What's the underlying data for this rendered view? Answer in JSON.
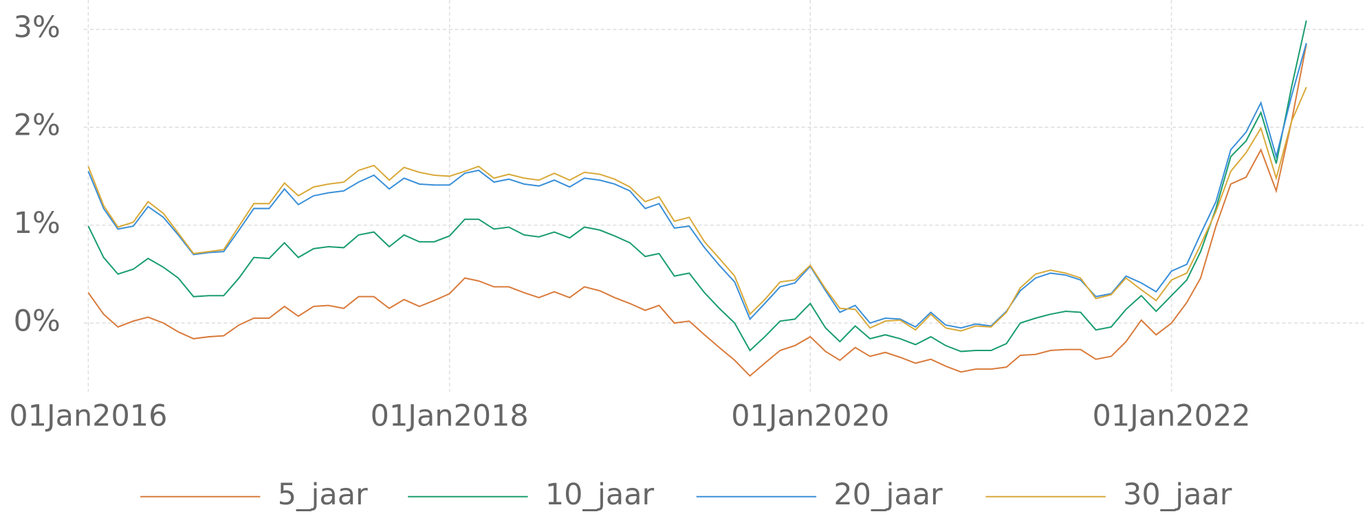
{
  "chart_data": {
    "type": "line",
    "x": [
      "2016-01-01",
      "2016-02-01",
      "2016-03-01",
      "2016-04-01",
      "2016-05-01",
      "2016-06-01",
      "2016-07-01",
      "2016-08-01",
      "2016-09-01",
      "2016-10-01",
      "2016-11-01",
      "2016-12-01",
      "2017-01-01",
      "2017-02-01",
      "2017-03-01",
      "2017-04-01",
      "2017-05-01",
      "2017-06-01",
      "2017-07-01",
      "2017-08-01",
      "2017-09-01",
      "2017-10-01",
      "2017-11-01",
      "2017-12-01",
      "2018-01-01",
      "2018-02-01",
      "2018-03-01",
      "2018-04-01",
      "2018-05-01",
      "2018-06-01",
      "2018-07-01",
      "2018-08-01",
      "2018-09-01",
      "2018-10-01",
      "2018-11-01",
      "2018-12-01",
      "2019-01-01",
      "2019-02-01",
      "2019-03-01",
      "2019-04-01",
      "2019-05-01",
      "2019-06-01",
      "2019-07-01",
      "2019-08-01",
      "2019-09-01",
      "2019-10-01",
      "2019-11-01",
      "2019-12-01",
      "2020-01-01",
      "2020-02-01",
      "2020-03-01",
      "2020-04-01",
      "2020-05-01",
      "2020-06-01",
      "2020-07-01",
      "2020-08-01",
      "2020-09-01",
      "2020-10-01",
      "2020-11-01",
      "2020-12-01",
      "2021-01-01",
      "2021-02-01",
      "2021-03-01",
      "2021-04-01",
      "2021-05-01",
      "2021-06-01",
      "2021-07-01",
      "2021-08-01",
      "2021-09-01",
      "2021-10-01",
      "2021-11-01",
      "2021-12-01",
      "2022-01-01",
      "2022-02-01",
      "2022-03-01",
      "2022-04-01",
      "2022-05-01",
      "2022-06-01",
      "2022-07-01",
      "2022-08-01",
      "2022-09-01",
      "2022-10-01"
    ],
    "series": [
      {
        "name": "5_jaar",
        "color": "#d97b3c",
        "values": [
          0.31,
          0.09,
          -0.04,
          0.02,
          0.06,
          0,
          -0.09,
          -0.16,
          -0.14,
          -0.13,
          -0.02,
          0.05,
          0.05,
          0.17,
          0.07,
          0.17,
          0.18,
          0.15,
          0.27,
          0.27,
          0.15,
          0.24,
          0.17,
          0.23,
          0.3,
          0.46,
          0.43,
          0.37,
          0.37,
          0.31,
          0.26,
          0.32,
          0.26,
          0.37,
          0.33,
          0.26,
          0.2,
          0.13,
          0.18,
          0,
          0.02,
          -0.12,
          -0.25,
          -0.38,
          -0.54,
          -0.41,
          -0.28,
          -0.23,
          -0.14,
          -0.29,
          -0.38,
          -0.25,
          -0.34,
          -0.3,
          -0.35,
          -0.41,
          -0.37,
          -0.44,
          -0.5,
          -0.47,
          -0.47,
          -0.45,
          -0.33,
          -0.32,
          -0.28,
          -0.27,
          -0.27,
          -0.37,
          -0.34,
          -0.19,
          0.03,
          -0.12,
          0,
          0.21,
          0.46,
          0.99,
          1.42,
          1.49,
          1.77,
          1.35,
          2.06,
          2.85
        ]
      },
      {
        "name": "10_jaar",
        "color": "#1a9d6e",
        "values": [
          0.99,
          0.67,
          0.5,
          0.55,
          0.66,
          0.57,
          0.46,
          0.27,
          0.28,
          0.28,
          0.46,
          0.67,
          0.66,
          0.82,
          0.67,
          0.76,
          0.78,
          0.77,
          0.9,
          0.93,
          0.78,
          0.9,
          0.83,
          0.83,
          0.89,
          1.06,
          1.06,
          0.96,
          0.98,
          0.9,
          0.88,
          0.93,
          0.87,
          0.98,
          0.95,
          0.89,
          0.82,
          0.68,
          0.71,
          0.48,
          0.51,
          0.31,
          0.15,
          0,
          -0.28,
          -0.14,
          0.02,
          0.04,
          0.2,
          -0.05,
          -0.19,
          -0.03,
          -0.16,
          -0.12,
          -0.16,
          -0.22,
          -0.14,
          -0.23,
          -0.29,
          -0.28,
          -0.28,
          -0.21,
          0,
          0.05,
          0.09,
          0.12,
          0.11,
          -0.07,
          -0.04,
          0.14,
          0.28,
          0.12,
          0.28,
          0.44,
          0.73,
          1.17,
          1.7,
          1.86,
          2.15,
          1.63,
          2.41,
          3.09
        ]
      },
      {
        "name": "20_jaar",
        "color": "#3a8fd8",
        "values": [
          1.55,
          1.17,
          0.96,
          0.99,
          1.19,
          1.08,
          0.9,
          0.7,
          0.72,
          0.73,
          0.95,
          1.17,
          1.17,
          1.37,
          1.21,
          1.3,
          1.33,
          1.35,
          1.44,
          1.51,
          1.37,
          1.48,
          1.42,
          1.41,
          1.41,
          1.53,
          1.56,
          1.44,
          1.47,
          1.42,
          1.4,
          1.46,
          1.39,
          1.48,
          1.46,
          1.42,
          1.35,
          1.17,
          1.22,
          0.97,
          0.99,
          0.77,
          0.59,
          0.42,
          0.04,
          0.2,
          0.37,
          0.41,
          0.58,
          0.33,
          0.11,
          0.18,
          0,
          0.05,
          0.04,
          -0.04,
          0.11,
          -0.02,
          -0.05,
          -0.01,
          -0.03,
          0.12,
          0.33,
          0.46,
          0.51,
          0.49,
          0.44,
          0.27,
          0.3,
          0.48,
          0.41,
          0.32,
          0.53,
          0.6,
          0.91,
          1.24,
          1.77,
          1.95,
          2.25,
          1.7,
          2.32,
          2.86
        ]
      },
      {
        "name": "30_jaar",
        "color": "#d9a93a",
        "values": [
          1.6,
          1.2,
          0.98,
          1.03,
          1.24,
          1.12,
          0.92,
          0.71,
          0.73,
          0.75,
          0.99,
          1.22,
          1.22,
          1.43,
          1.3,
          1.39,
          1.42,
          1.44,
          1.56,
          1.61,
          1.46,
          1.59,
          1.54,
          1.51,
          1.5,
          1.55,
          1.6,
          1.48,
          1.52,
          1.48,
          1.46,
          1.53,
          1.46,
          1.54,
          1.52,
          1.47,
          1.39,
          1.24,
          1.29,
          1.04,
          1.08,
          0.83,
          0.66,
          0.48,
          0.09,
          0.24,
          0.42,
          0.44,
          0.59,
          0.35,
          0.15,
          0.14,
          -0.05,
          0.02,
          0.03,
          -0.07,
          0.09,
          -0.05,
          -0.08,
          -0.03,
          -0.04,
          0.11,
          0.36,
          0.5,
          0.54,
          0.51,
          0.46,
          0.25,
          0.29,
          0.46,
          0.34,
          0.23,
          0.44,
          0.51,
          0.8,
          1.14,
          1.55,
          1.74,
          1.99,
          1.48,
          2.06,
          2.41
        ]
      }
    ],
    "xlim": [
      "2015-12-23",
      "2023-01-25"
    ],
    "xticks": [
      {
        "value": "2016-01-01",
        "label": "01Jan2016"
      },
      {
        "value": "2018-01-01",
        "label": "01Jan2018"
      },
      {
        "value": "2020-01-01",
        "label": "01Jan2020"
      },
      {
        "value": "2022-01-01",
        "label": "01Jan2022"
      }
    ],
    "ylim": [
      -0.7,
      3.3
    ],
    "yticks": [
      {
        "value": 0,
        "label": "0%"
      },
      {
        "value": 1,
        "label": "1%"
      },
      {
        "value": 2,
        "label": "2%"
      },
      {
        "value": 3,
        "label": "3%"
      }
    ],
    "grid": true,
    "legend_position": "bottom"
  }
}
